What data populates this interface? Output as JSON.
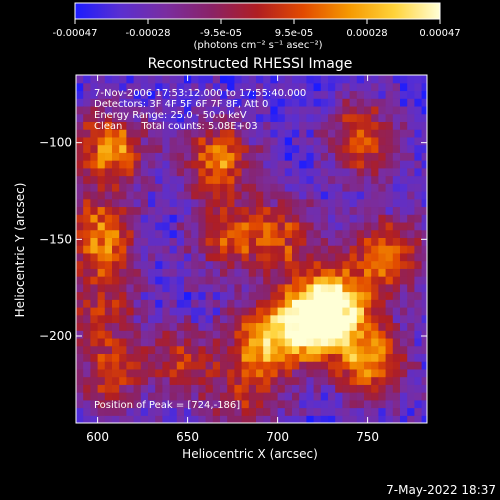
{
  "colorbar": {
    "ticks": [
      "-0.00047",
      "-0.00028",
      "-9.5e-05",
      "9.5e-05",
      "0.00028",
      "0.00047"
    ],
    "unit_label": "(photons cm⁻² s⁻¹ asec⁻²)",
    "colors": [
      "#1c1cff",
      "#5a2fd0",
      "#7a2da0",
      "#8a2266",
      "#b01e22",
      "#e24a00",
      "#f59800",
      "#ffd33a",
      "#ffffd6"
    ]
  },
  "chart_data": {
    "type": "heatmap",
    "title": "Reconstructed RHESSI Image",
    "xlabel": "Heliocentric X (arcsec)",
    "ylabel": "Heliocentric Y (arcsec)",
    "xlim": [
      588,
      783
    ],
    "ylim": [
      -245,
      -65
    ],
    "x_ticks": [
      600,
      650,
      700,
      750
    ],
    "y_ticks": [
      -100,
      -150,
      -200
    ],
    "annotations": [
      "7-Nov-2006 17:53:12.000 to 17:55:40.000",
      "Detectors: 3F 4F 5F 6F 7F 8F, Att 0",
      "Energy Range: 25.0 - 50.0 keV",
      "Clean      Total counts: 5.08E+03"
    ],
    "peak_label": "Position of Peak = [724,-186]",
    "peak": [
      724,
      -186
    ],
    "hot_spots": [
      {
        "x": 605,
        "y": -105,
        "level": 0.85
      },
      {
        "x": 600,
        "y": -150,
        "level": 0.8
      },
      {
        "x": 665,
        "y": -110,
        "level": 0.75
      },
      {
        "x": 670,
        "y": -150,
        "level": 0.55
      },
      {
        "x": 700,
        "y": -150,
        "level": 0.6
      },
      {
        "x": 745,
        "y": -100,
        "level": 0.7
      },
      {
        "x": 760,
        "y": -160,
        "level": 0.75
      },
      {
        "x": 715,
        "y": -195,
        "level": 0.95
      },
      {
        "x": 730,
        "y": -186,
        "level": 1.0
      },
      {
        "x": 690,
        "y": -205,
        "level": 0.8
      },
      {
        "x": 750,
        "y": -215,
        "level": 0.85
      },
      {
        "x": 605,
        "y": -220,
        "level": 0.55
      },
      {
        "x": 645,
        "y": -215,
        "level": 0.5
      },
      {
        "x": 680,
        "y": -235,
        "level": 0.45
      },
      {
        "x": 600,
        "y": -185,
        "level": 0.5
      }
    ],
    "color_min": -0.00047,
    "color_max": 0.00047
  },
  "footer": {
    "date": "7-May-2022 18:37"
  }
}
